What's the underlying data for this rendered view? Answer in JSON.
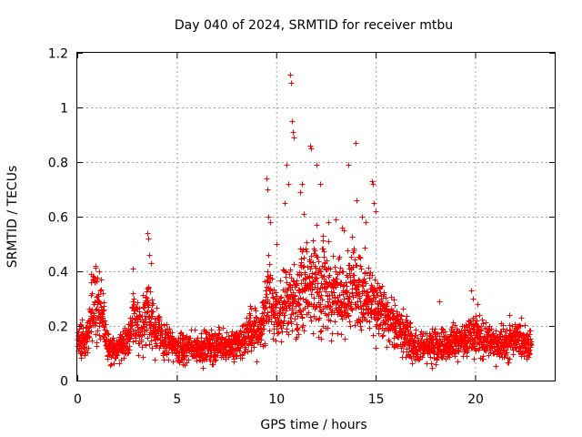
{
  "chart_data": {
    "type": "scatter",
    "title": "Day 040 of 2024, SRMTID for receiver mtbu",
    "xlabel": "GPS time / hours",
    "ylabel": "SRMTID / TECUs",
    "xlim": [
      0,
      24
    ],
    "ylim": [
      0,
      1.2
    ],
    "xticks": [
      "0",
      "5",
      "10",
      "15",
      "20"
    ],
    "yticks": [
      "0",
      "0.2",
      "0.4",
      "0.6",
      "0.8",
      "1",
      "1.2"
    ],
    "grid": true,
    "marker": "+",
    "color": "#ff0000",
    "series": [
      {
        "name": "SRMTID",
        "profile": [
          [
            0.0,
            0.13
          ],
          [
            0.5,
            0.17
          ],
          [
            0.8,
            0.3
          ],
          [
            1.2,
            0.26
          ],
          [
            1.5,
            0.12
          ],
          [
            2.0,
            0.11
          ],
          [
            2.5,
            0.14
          ],
          [
            2.8,
            0.24
          ],
          [
            3.2,
            0.18
          ],
          [
            3.5,
            0.28
          ],
          [
            3.9,
            0.2
          ],
          [
            4.3,
            0.15
          ],
          [
            5.0,
            0.12
          ],
          [
            6.0,
            0.12
          ],
          [
            7.0,
            0.13
          ],
          [
            8.0,
            0.13
          ],
          [
            8.7,
            0.18
          ],
          [
            9.2,
            0.18
          ],
          [
            9.6,
            0.33
          ],
          [
            10.0,
            0.22
          ],
          [
            10.5,
            0.3
          ],
          [
            11.0,
            0.3
          ],
          [
            11.5,
            0.33
          ],
          [
            12.0,
            0.38
          ],
          [
            12.5,
            0.34
          ],
          [
            13.0,
            0.3
          ],
          [
            13.5,
            0.32
          ],
          [
            14.0,
            0.35
          ],
          [
            14.5,
            0.3
          ],
          [
            15.0,
            0.28
          ],
          [
            15.3,
            0.25
          ],
          [
            15.8,
            0.2
          ],
          [
            16.5,
            0.16
          ],
          [
            17.0,
            0.12
          ],
          [
            18.0,
            0.13
          ],
          [
            19.0,
            0.14
          ],
          [
            19.5,
            0.15
          ],
          [
            20.0,
            0.17
          ],
          [
            21.0,
            0.13
          ],
          [
            22.0,
            0.15
          ],
          [
            22.8,
            0.14
          ]
        ],
        "peaks": [
          [
            0.7,
            0.39
          ],
          [
            0.8,
            0.38
          ],
          [
            1.1,
            0.4
          ],
          [
            1.2,
            0.37
          ],
          [
            2.8,
            0.41
          ],
          [
            3.5,
            0.54
          ],
          [
            3.55,
            0.52
          ],
          [
            3.6,
            0.46
          ],
          [
            3.7,
            0.43
          ],
          [
            9.5,
            0.74
          ],
          [
            9.55,
            0.7
          ],
          [
            9.6,
            0.6
          ],
          [
            9.7,
            0.58
          ],
          [
            10.0,
            0.5
          ],
          [
            10.4,
            0.65
          ],
          [
            10.5,
            0.79
          ],
          [
            10.6,
            0.72
          ],
          [
            10.7,
            1.12
          ],
          [
            10.72,
            1.09
          ],
          [
            10.8,
            0.95
          ],
          [
            10.85,
            0.91
          ],
          [
            10.9,
            0.89
          ],
          [
            11.2,
            0.69
          ],
          [
            11.3,
            0.72
          ],
          [
            11.4,
            0.61
          ],
          [
            11.7,
            0.86
          ],
          [
            11.75,
            0.85
          ],
          [
            12.0,
            0.79
          ],
          [
            12.2,
            0.72
          ],
          [
            12.6,
            0.58
          ],
          [
            13.0,
            0.59
          ],
          [
            13.3,
            0.56
          ],
          [
            13.4,
            0.55
          ],
          [
            13.6,
            0.79
          ],
          [
            14.0,
            0.87
          ],
          [
            14.05,
            0.66
          ],
          [
            14.3,
            0.6
          ],
          [
            14.5,
            0.58
          ],
          [
            14.8,
            0.73
          ],
          [
            14.85,
            0.72
          ],
          [
            14.9,
            0.65
          ],
          [
            15.0,
            0.62
          ],
          [
            18.2,
            0.29
          ],
          [
            19.8,
            0.33
          ],
          [
            19.9,
            0.3
          ],
          [
            20.1,
            0.28
          ],
          [
            21.7,
            0.24
          ],
          [
            22.3,
            0.23
          ]
        ]
      }
    ]
  }
}
